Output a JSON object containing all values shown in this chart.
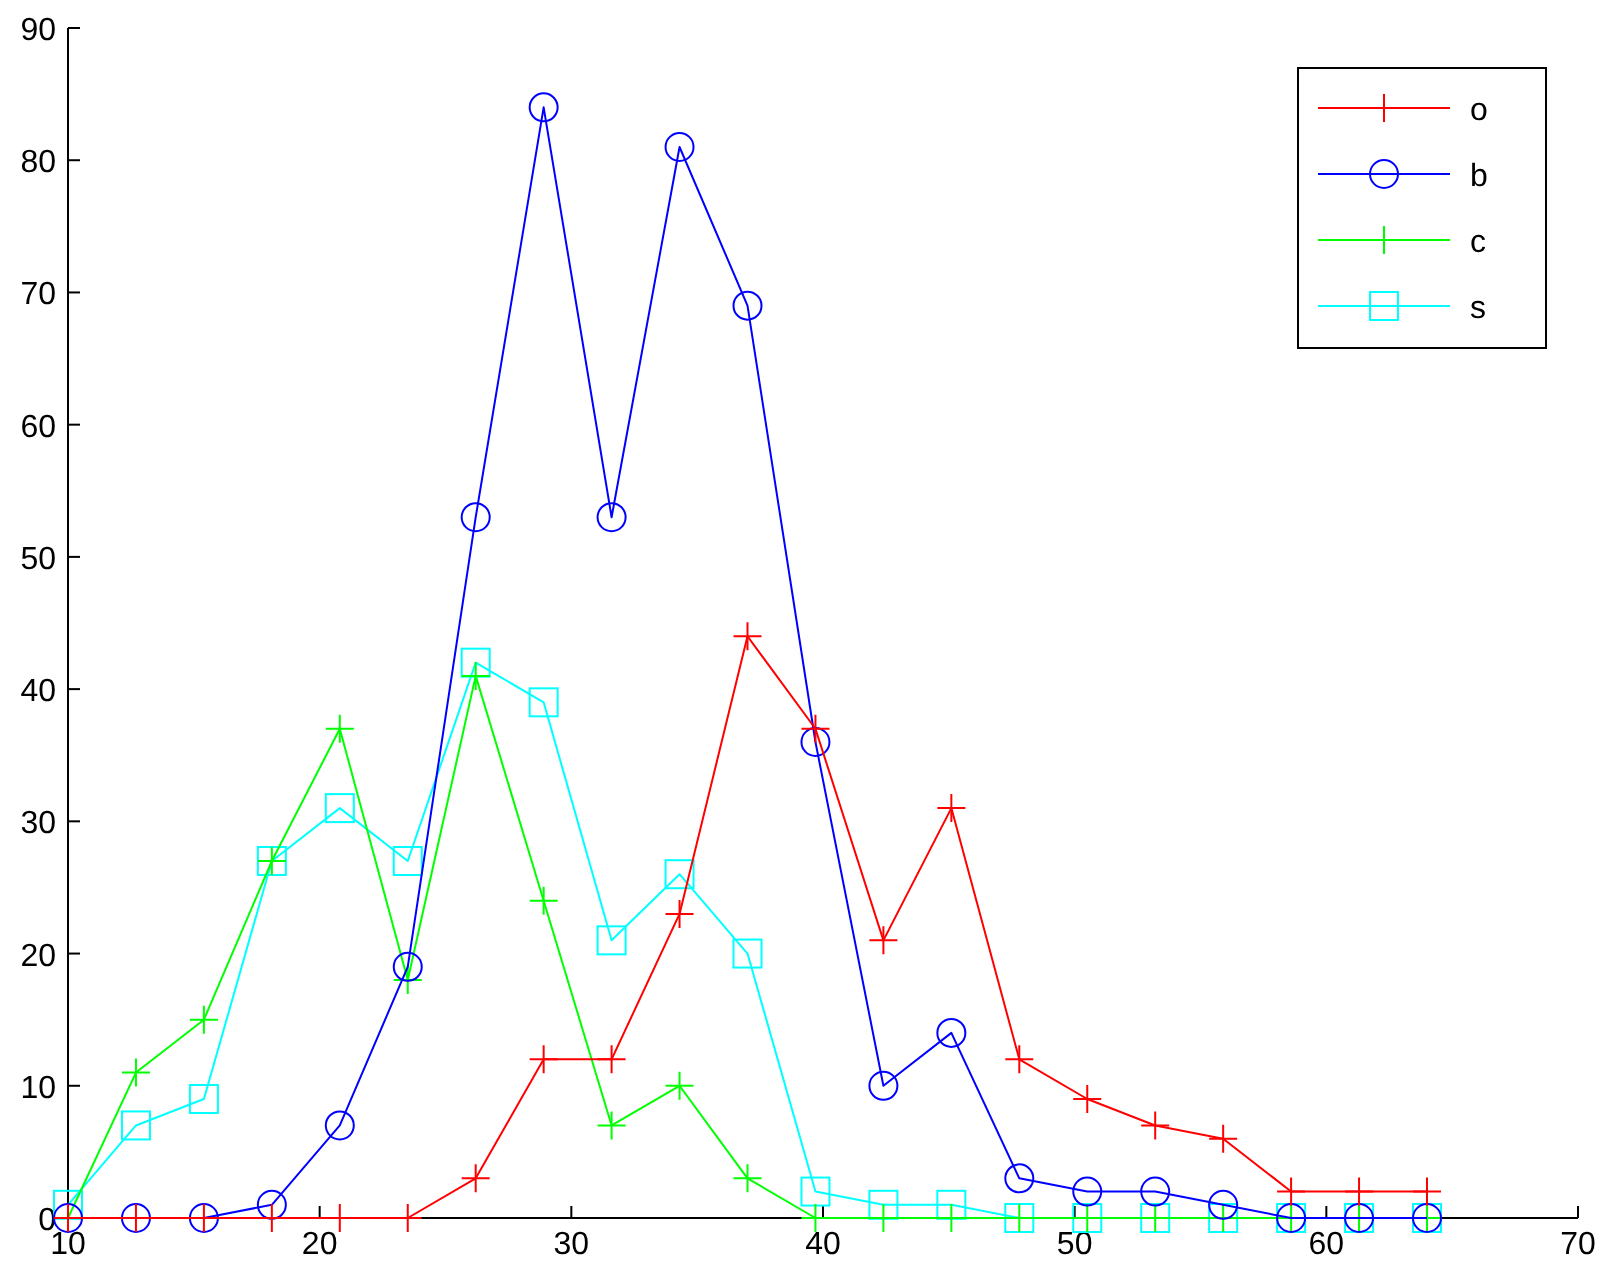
{
  "chart_data": {
    "type": "line",
    "x": [
      10,
      12.7,
      15.4,
      18.1,
      20.8,
      23.5,
      26.2,
      28.9,
      31.6,
      34.3,
      37,
      39.7,
      42.4,
      45.1,
      47.8,
      50.5,
      53.2,
      55.9,
      58.6,
      61.3,
      64
    ],
    "series": [
      {
        "name": "o",
        "color": "#ff0000",
        "marker": "cross",
        "values": [
          0,
          0,
          0,
          0,
          0,
          0,
          3,
          12,
          12,
          23,
          44,
          37,
          21,
          31,
          12,
          9,
          7,
          6,
          2,
          2,
          2
        ]
      },
      {
        "name": "b",
        "color": "#0000ff",
        "marker": "circle",
        "values": [
          0,
          0,
          0,
          1,
          7,
          19,
          53,
          84,
          53,
          81,
          69,
          36,
          10,
          14,
          3,
          2,
          2,
          1,
          0,
          0,
          0
        ]
      },
      {
        "name": "c",
        "color": "#00ff00",
        "marker": "cross",
        "values": [
          0,
          11,
          15,
          27,
          37,
          18,
          41,
          24,
          7,
          10,
          3,
          0,
          0,
          0,
          0,
          0,
          0,
          0,
          0,
          0,
          0
        ]
      },
      {
        "name": "s",
        "color": "#00ffff",
        "marker": "square",
        "values": [
          1,
          7,
          9,
          27,
          31,
          27,
          42,
          39,
          21,
          26,
          20,
          2,
          1,
          1,
          0,
          0,
          0,
          0,
          0,
          0,
          0
        ]
      }
    ],
    "xlim": [
      10,
      70
    ],
    "xticks": [
      10,
      20,
      30,
      40,
      50,
      60,
      70
    ],
    "ylim": [
      0,
      90
    ],
    "yticks": [
      0,
      10,
      20,
      30,
      40,
      50,
      60,
      70,
      80,
      90
    ],
    "grid": false,
    "legend": "top right",
    "line_style": "solid"
  }
}
